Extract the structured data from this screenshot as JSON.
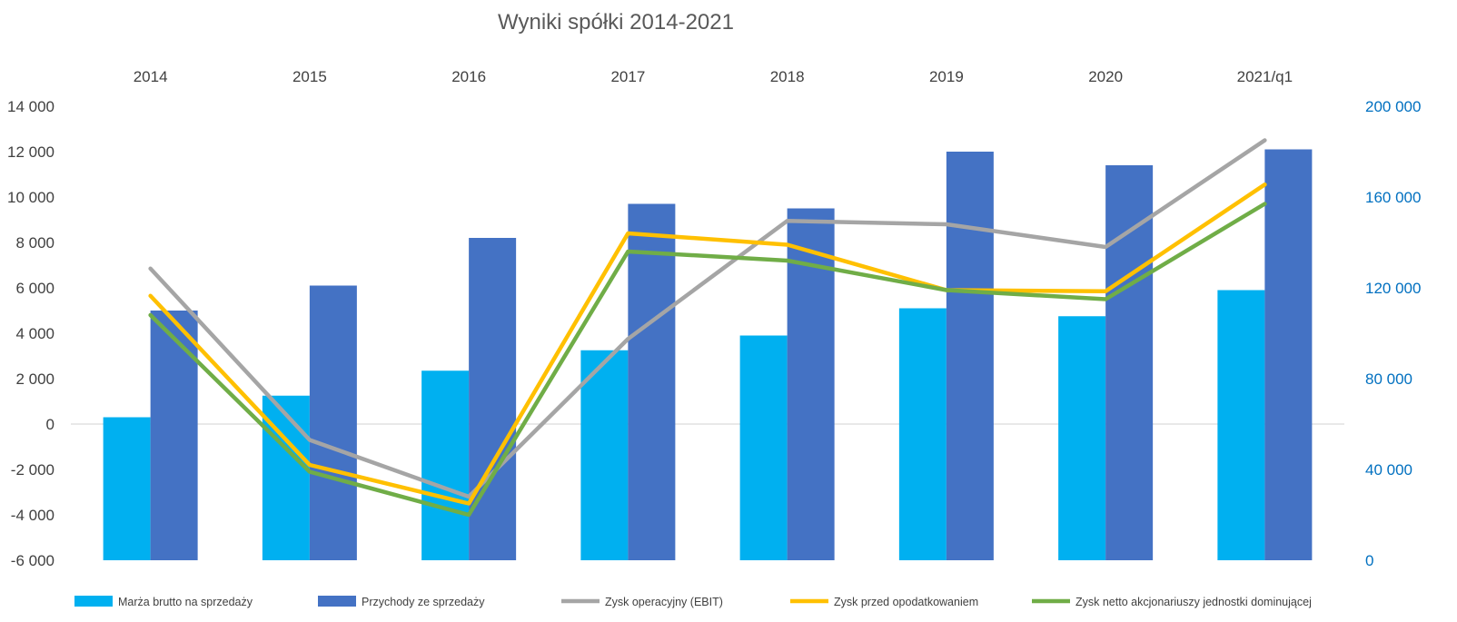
{
  "chart_data": {
    "type": "bar",
    "title": "Wyniki spółki 2014-2021",
    "categories": [
      "2014",
      "2015",
      "2016",
      "2017",
      "2018",
      "2019",
      "2020",
      "2021/q1"
    ],
    "left_axis": {
      "ylim": [
        -6000,
        14000
      ],
      "ticks": [
        -6000,
        -4000,
        -2000,
        0,
        2000,
        4000,
        6000,
        8000,
        10000,
        12000,
        14000
      ],
      "tick_labels": [
        "-6 000",
        "-4 000",
        "-2 000",
        "0",
        "2 000",
        "4 000",
        "6 000",
        "8 000",
        "10 000",
        "12 000",
        "14 000"
      ]
    },
    "right_axis": {
      "ylim": [
        0,
        200000
      ],
      "ticks": [
        0,
        40000,
        80000,
        120000,
        160000,
        200000
      ],
      "tick_labels": [
        "0",
        "40 000",
        "80 000",
        "120 000",
        "160 000",
        "200 000"
      ]
    },
    "series": [
      {
        "name": "Marża brutto na sprzedaży",
        "type": "bar",
        "axis": "left",
        "color": "#00b0f0",
        "values": [
          300,
          1250,
          2350,
          3250,
          3900,
          5100,
          4750,
          5900
        ]
      },
      {
        "name": "Przychody ze sprzedaży",
        "type": "bar",
        "axis": "right",
        "color": "#4472c4",
        "values": [
          110000,
          121000,
          142000,
          157000,
          155000,
          180000,
          174000,
          181000
        ]
      },
      {
        "name": "Zysk operacyjny (EBIT)",
        "type": "line",
        "axis": "left",
        "color": "#a5a5a5",
        "values": [
          6850,
          -700,
          -3200,
          3750,
          8950,
          8800,
          7800,
          12500
        ]
      },
      {
        "name": "Zysk przed opodatkowaniem",
        "type": "line",
        "axis": "left",
        "color": "#ffc000",
        "values": [
          5650,
          -1800,
          -3500,
          8400,
          7900,
          5900,
          5850,
          10550
        ]
      },
      {
        "name": "Zysk netto akcjonariuszy jednostki dominującej",
        "type": "line",
        "axis": "left",
        "color": "#70ad47",
        "values": [
          4800,
          -2100,
          -4000,
          7600,
          7200,
          5900,
          5500,
          9700
        ]
      }
    ],
    "grid": false,
    "legend": "bottom"
  }
}
